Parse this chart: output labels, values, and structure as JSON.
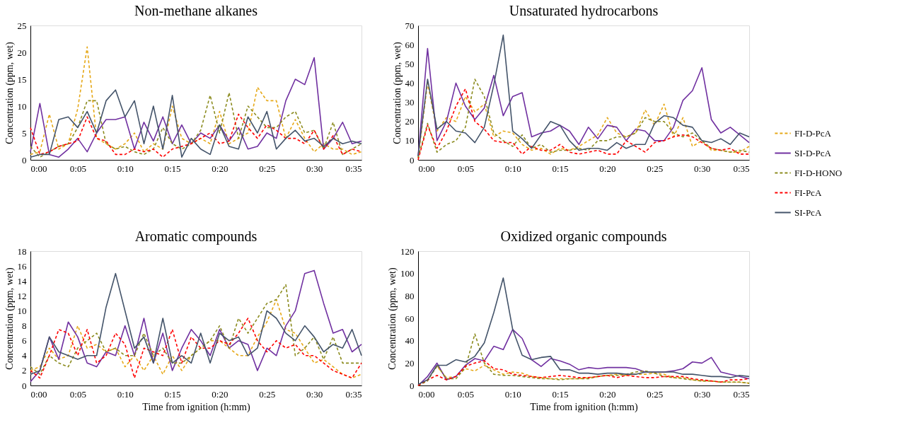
{
  "chart_data": [
    {
      "type": "line",
      "title": "Non-methane alkanes",
      "ylabel": "Concentration (ppm, wet)",
      "legend": "right",
      "grid": false,
      "x": [
        0,
        1,
        2,
        3,
        4,
        5,
        6,
        7,
        8,
        9,
        10,
        11,
        12,
        13,
        14,
        15,
        16,
        17,
        18,
        19,
        20,
        21,
        22,
        23,
        24,
        25,
        26,
        27,
        28,
        29,
        30,
        31,
        32,
        33,
        34,
        35
      ],
      "xlim": [
        0,
        35
      ],
      "xticks": [
        {
          "value": 0,
          "label": "0:00"
        },
        {
          "value": 5,
          "label": "0:05"
        },
        {
          "value": 10,
          "label": "0:10"
        },
        {
          "value": 15,
          "label": "0:15"
        },
        {
          "value": 20,
          "label": "0:20"
        },
        {
          "value": 25,
          "label": "0:25"
        },
        {
          "value": 30,
          "label": "0:30"
        },
        {
          "value": 35,
          "label": "0:35"
        }
      ],
      "ylim": [
        0,
        25
      ],
      "yticks": [
        0,
        5,
        10,
        15,
        20,
        25
      ],
      "series": [
        {
          "name": "FI-D-PcA",
          "color": "#e6a817",
          "line_style": "dashed",
          "values": [
            1,
            1.5,
            8.5,
            2,
            3,
            9.5,
            21,
            4,
            3,
            2,
            3,
            5,
            1.5,
            3,
            2,
            10,
            4,
            3,
            4,
            3,
            9,
            3,
            4,
            5,
            13.5,
            11,
            11,
            4,
            7.5,
            4,
            1.5,
            3,
            2,
            2,
            1,
            1.5
          ]
        },
        {
          "name": "SI-D-PcA",
          "color": "#7030a0",
          "line_style": "solid",
          "values": [
            1.5,
            10.5,
            1,
            0.5,
            2,
            4,
            1.5,
            5,
            7.5,
            7.5,
            8,
            2,
            7,
            3.5,
            8,
            3,
            6.5,
            3,
            5,
            4,
            6.5,
            3.5,
            6,
            2,
            2.5,
            5,
            4,
            11,
            15,
            14,
            19,
            2,
            4,
            7,
            3,
            3.5
          ]
        },
        {
          "name": "FI-D-HONO",
          "color": "#8b8b1e",
          "line_style": "dashed",
          "values": [
            2.5,
            0.5,
            1.5,
            2.5,
            3,
            6,
            11,
            11,
            3,
            2,
            2.5,
            1.5,
            1,
            2,
            6,
            3,
            2,
            3,
            5.5,
            12,
            5,
            12.5,
            4,
            10,
            8,
            6,
            6,
            8,
            9,
            5,
            5.5,
            2,
            7,
            1,
            2,
            3
          ]
        },
        {
          "name": "FI-PcA",
          "color": "#ff0000",
          "line_style": "dashed",
          "values": [
            6,
            1,
            1.5,
            2.5,
            3,
            3.5,
            8,
            4,
            3.5,
            1,
            1,
            2,
            1.5,
            2,
            0.5,
            2,
            2.5,
            3,
            4,
            5,
            3,
            3.5,
            8.5,
            6,
            4,
            6.5,
            5.5,
            4,
            4,
            3,
            5.5,
            2,
            4.5,
            1,
            2,
            1.5
          ]
        },
        {
          "name": "SI-PcA",
          "color": "#44546a",
          "line_style": "solid",
          "values": [
            0.5,
            1,
            1,
            7.5,
            8,
            6,
            9,
            5,
            11,
            13,
            8,
            11,
            3,
            10,
            2,
            12,
            0.5,
            4,
            2,
            1,
            6.5,
            2.5,
            2,
            8,
            5,
            9,
            2,
            4,
            5.5,
            3.5,
            4,
            2.5,
            4,
            3,
            3.5,
            3
          ]
        }
      ]
    },
    {
      "type": "line",
      "title": "Unsaturated hydrocarbons",
      "ylabel": "Concentration (ppm, wet)",
      "legend": false,
      "grid": false,
      "x": [
        0,
        1,
        2,
        3,
        4,
        5,
        6,
        7,
        8,
        9,
        10,
        11,
        12,
        13,
        14,
        15,
        16,
        17,
        18,
        19,
        20,
        21,
        22,
        23,
        24,
        25,
        26,
        27,
        28,
        29,
        30,
        31,
        32,
        33,
        34,
        35
      ],
      "xlim": [
        0,
        35
      ],
      "xticks": [
        {
          "value": 0,
          "label": "0:00"
        },
        {
          "value": 5,
          "label": "0:05"
        },
        {
          "value": 10,
          "label": "0:10"
        },
        {
          "value": 15,
          "label": "0:15"
        },
        {
          "value": 20,
          "label": "0:20"
        },
        {
          "value": 25,
          "label": "0:25"
        },
        {
          "value": 30,
          "label": "0:30"
        },
        {
          "value": 35,
          "label": "0:35"
        }
      ],
      "ylim": [
        0,
        70
      ],
      "yticks": [
        0,
        10,
        20,
        30,
        40,
        50,
        60,
        70
      ],
      "series": [
        {
          "color": "#e6a817",
          "line_style": "dashed",
          "values": [
            1,
            40,
            15,
            22,
            20,
            33,
            25,
            29,
            12,
            15,
            14,
            8,
            5,
            6,
            3,
            6,
            5,
            7,
            10,
            13,
            22,
            14,
            12,
            14,
            26,
            18,
            29,
            12,
            22,
            7,
            10,
            5,
            5,
            4,
            4,
            7
          ]
        },
        {
          "color": "#7030a0",
          "line_style": "solid",
          "values": [
            2,
            58,
            10,
            20,
            40,
            28,
            21,
            27,
            44,
            23,
            33,
            35,
            12,
            14,
            15,
            18,
            15,
            8,
            17,
            11,
            18,
            17,
            10,
            16,
            15,
            10,
            10,
            17,
            31,
            36,
            48,
            21,
            14,
            17,
            13,
            9
          ]
        },
        {
          "color": "#8b8b1e",
          "line_style": "dashed",
          "values": [
            1,
            19,
            4,
            8,
            10,
            17,
            42,
            33,
            14,
            10,
            7,
            13,
            6,
            8,
            4,
            5,
            5,
            6,
            5,
            10,
            10,
            12,
            12,
            14,
            22,
            20,
            20,
            14,
            12,
            14,
            10,
            6,
            5,
            4,
            5,
            4
          ]
        },
        {
          "color": "#ff0000",
          "line_style": "dashed",
          "values": [
            0,
            18,
            6,
            15,
            28,
            37,
            20,
            16,
            10,
            9,
            9,
            3,
            7,
            5,
            5,
            8,
            4,
            3,
            4,
            5,
            3,
            3,
            10,
            7,
            4,
            9,
            10,
            12,
            13,
            12,
            9,
            6,
            5,
            6,
            3,
            3
          ]
        },
        {
          "color": "#44546a",
          "line_style": "solid",
          "values": [
            2,
            42,
            16,
            20,
            15,
            14,
            9,
            17,
            39,
            65,
            15,
            11,
            6,
            13,
            20,
            18,
            10,
            5,
            6,
            6,
            5,
            9,
            6,
            8,
            8,
            19,
            23,
            22,
            18,
            17,
            10,
            9,
            11,
            8,
            14,
            12
          ]
        }
      ]
    },
    {
      "type": "line",
      "title": "Aromatic compounds",
      "xlabel": "Time from ignition (h:mm)",
      "ylabel": "Concentration (ppm, wet)",
      "legend": false,
      "grid": false,
      "x": [
        0,
        1,
        2,
        3,
        4,
        5,
        6,
        7,
        8,
        9,
        10,
        11,
        12,
        13,
        14,
        15,
        16,
        17,
        18,
        19,
        20,
        21,
        22,
        23,
        24,
        25,
        26,
        27,
        28,
        29,
        30,
        31,
        32,
        33,
        34,
        35
      ],
      "xlim": [
        0,
        35
      ],
      "xticks": [
        {
          "value": 0,
          "label": "0:00"
        },
        {
          "value": 5,
          "label": "0:05"
        },
        {
          "value": 10,
          "label": "0:10"
        },
        {
          "value": 15,
          "label": "0:15"
        },
        {
          "value": 20,
          "label": "0:20"
        },
        {
          "value": 25,
          "label": "0:25"
        },
        {
          "value": 30,
          "label": "0:30"
        },
        {
          "value": 35,
          "label": "0:35"
        }
      ],
      "ylim": [
        0,
        18
      ],
      "yticks": [
        0,
        2,
        4,
        6,
        8,
        10,
        12,
        14,
        16,
        18
      ],
      "series": [
        {
          "color": "#e6a817",
          "line_style": "dashed",
          "values": [
            2,
            2.5,
            5,
            3.5,
            4,
            8,
            5,
            5.5,
            4.5,
            5,
            2.5,
            4,
            2,
            4,
            1.5,
            4,
            2,
            4,
            5,
            6,
            6,
            5,
            4,
            4,
            6.5,
            8.5,
            11.5,
            7.5,
            7,
            5,
            3,
            3.5,
            2.5,
            1.5,
            1,
            1.5
          ]
        },
        {
          "color": "#7030a0",
          "line_style": "solid",
          "values": [
            0.5,
            2,
            6.5,
            3.5,
            8.5,
            6.5,
            3,
            2.5,
            4.5,
            4,
            8,
            4,
            9,
            3,
            7,
            2,
            5,
            7.5,
            6,
            4,
            7.5,
            5,
            6,
            5.5,
            2,
            5,
            4,
            8,
            10,
            15,
            15.4,
            11,
            7,
            7.5,
            4.5,
            5.5
          ]
        },
        {
          "color": "#8b8b1e",
          "line_style": "dashed",
          "values": [
            2.5,
            1.5,
            4,
            3,
            2.5,
            5,
            6,
            7,
            4.5,
            5,
            4,
            4,
            7,
            4,
            5,
            3,
            3,
            4,
            5,
            6,
            8,
            5,
            9,
            7,
            9,
            11,
            11.5,
            13.5,
            4,
            5,
            6.5,
            3.5,
            6.5,
            3,
            3,
            3
          ]
        },
        {
          "color": "#ff0000",
          "line_style": "dashed",
          "values": [
            2,
            1,
            4,
            7.5,
            7,
            4,
            7.5,
            3,
            4,
            7,
            5.5,
            1,
            5,
            4.5,
            4,
            7.5,
            3,
            6.5,
            5,
            5,
            6,
            5.5,
            7,
            9,
            6,
            4.5,
            6,
            5,
            5.5,
            4,
            4,
            3,
            2,
            1.5,
            1,
            3
          ]
        },
        {
          "color": "#44546a",
          "line_style": "solid",
          "values": [
            1.5,
            2,
            6.5,
            4.5,
            4,
            3.5,
            4,
            4,
            10.5,
            15,
            10,
            5,
            6.5,
            3,
            9,
            3,
            4,
            3,
            7,
            3,
            7,
            6,
            6.5,
            4,
            5,
            10,
            9,
            7,
            6,
            8,
            6.5,
            4.5,
            5.5,
            5,
            7.5,
            4
          ]
        }
      ]
    },
    {
      "type": "line",
      "title": "Oxidized organic compounds",
      "xlabel": "Time from ignition (h:mm)",
      "ylabel": "Concentration (ppm, wet)",
      "legend": false,
      "grid": false,
      "x": [
        0,
        1,
        2,
        3,
        4,
        5,
        6,
        7,
        8,
        9,
        10,
        11,
        12,
        13,
        14,
        15,
        16,
        17,
        18,
        19,
        20,
        21,
        22,
        23,
        24,
        25,
        26,
        27,
        28,
        29,
        30,
        31,
        32,
        33,
        34,
        35
      ],
      "xlim": [
        0,
        35
      ],
      "xticks": [
        {
          "value": 0,
          "label": "0:00"
        },
        {
          "value": 5,
          "label": "0:05"
        },
        {
          "value": 10,
          "label": "0:10"
        },
        {
          "value": 15,
          "label": "0:15"
        },
        {
          "value": 20,
          "label": "0:20"
        },
        {
          "value": 25,
          "label": "0:25"
        },
        {
          "value": 30,
          "label": "0:30"
        },
        {
          "value": 35,
          "label": "0:35"
        }
      ],
      "ylim": [
        0,
        120
      ],
      "yticks": [
        0,
        20,
        40,
        60,
        80,
        100,
        120
      ],
      "series": [
        {
          "color": "#e6a817",
          "line_style": "dashed",
          "values": [
            0,
            5,
            17,
            7,
            8,
            15,
            13,
            18,
            14,
            10,
            12,
            11,
            8,
            7,
            6,
            6,
            6,
            6,
            7,
            8,
            9,
            10,
            9,
            10,
            10,
            11,
            10,
            7,
            7,
            5,
            4,
            4,
            3,
            3,
            3,
            2
          ]
        },
        {
          "color": "#7030a0",
          "line_style": "solid",
          "values": [
            0,
            8,
            20,
            5,
            8,
            18,
            24,
            22,
            35,
            32,
            50,
            42,
            23,
            17,
            24,
            22,
            19,
            14,
            16,
            15,
            16,
            16,
            16,
            15,
            12,
            12,
            12,
            13,
            15,
            21,
            20,
            25,
            12,
            10,
            8,
            6
          ]
        },
        {
          "color": "#8b8b1e",
          "line_style": "dashed",
          "values": [
            0,
            4,
            18,
            6,
            6,
            16,
            46,
            20,
            10,
            9,
            9,
            8,
            7,
            6,
            6,
            5,
            6,
            6,
            6,
            8,
            9,
            9,
            10,
            12,
            13,
            11,
            8,
            7,
            6,
            5,
            4,
            4,
            3,
            3,
            3,
            2
          ]
        },
        {
          "color": "#ff0000",
          "line_style": "dashed",
          "values": [
            0,
            5,
            9,
            5,
            8,
            17,
            20,
            22,
            15,
            14,
            10,
            9,
            8,
            7,
            8,
            9,
            8,
            7,
            7,
            8,
            9,
            7,
            9,
            8,
            7,
            7,
            8,
            8,
            8,
            6,
            5,
            4,
            3,
            5,
            5,
            6
          ]
        },
        {
          "color": "#44546a",
          "line_style": "solid",
          "values": [
            1,
            5,
            18,
            18,
            23,
            21,
            26,
            38,
            65,
            96,
            50,
            27,
            23,
            25,
            26,
            14,
            14,
            11,
            11,
            10,
            11,
            11,
            10,
            10,
            12,
            12,
            12,
            12,
            10,
            10,
            9,
            8,
            8,
            7,
            9,
            8
          ]
        }
      ]
    }
  ]
}
